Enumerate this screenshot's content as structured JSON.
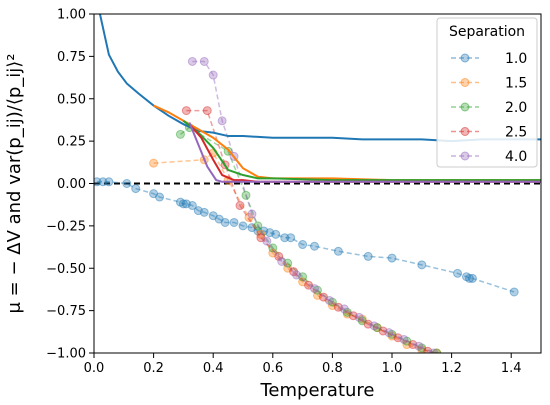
{
  "chart_data": {
    "type": "line",
    "xlabel": "Temperature",
    "ylabel": "μ = − ΔV and var(p_ij)/⟨p_ij⟩²",
    "xlim": [
      0.0,
      1.5
    ],
    "ylim": [
      -1.0,
      1.0
    ],
    "xticks": [
      "0.0",
      "0.2",
      "0.4",
      "0.6",
      "0.8",
      "1.0",
      "1.2",
      "1.4"
    ],
    "yticks": [
      "1.00",
      "0.75",
      "0.50",
      "0.25",
      "0.00",
      "−0.25",
      "−0.50",
      "−0.75",
      "−1.00"
    ],
    "grid": false,
    "legend": {
      "title": "Separation",
      "placement": "top-right"
    },
    "reference_line": {
      "y": 0.0,
      "style": "dashed",
      "color": "#000000"
    },
    "series": [
      {
        "name": "1.0",
        "color": "#1f77b4",
        "style": "dashed-markers",
        "x": [
          0.01,
          0.03,
          0.05,
          0.11,
          0.14,
          0.2,
          0.22,
          0.29,
          0.3,
          0.31,
          0.33,
          0.35,
          0.37,
          0.4,
          0.42,
          0.44,
          0.47,
          0.5,
          0.53,
          0.55,
          0.57,
          0.59,
          0.61,
          0.64,
          0.66,
          0.7,
          0.74,
          0.82,
          0.92,
          1.0,
          1.1,
          1.22,
          1.25,
          1.26,
          1.27,
          1.41
        ],
        "y": [
          0.01,
          0.01,
          0.01,
          -0.0,
          -0.03,
          -0.06,
          -0.08,
          -0.11,
          -0.12,
          -0.12,
          -0.13,
          -0.16,
          -0.17,
          -0.19,
          -0.21,
          -0.23,
          -0.23,
          -0.25,
          -0.26,
          -0.28,
          -0.28,
          -0.29,
          -0.3,
          -0.32,
          -0.32,
          -0.36,
          -0.37,
          -0.4,
          -0.43,
          -0.44,
          -0.48,
          -0.53,
          -0.55,
          -0.56,
          -0.56,
          -0.64
        ]
      },
      {
        "name": "1.5",
        "color": "#ff7f0e",
        "style": "dashed-markers",
        "x": [
          0.2,
          0.37,
          0.4,
          0.45,
          0.52,
          0.56,
          0.6,
          0.65,
          0.7,
          0.75,
          0.8,
          0.85,
          0.9,
          0.95,
          1.0,
          1.05,
          1.1,
          1.15
        ],
        "y": [
          0.12,
          0.14,
          0.18,
          0.02,
          -0.2,
          -0.3,
          -0.41,
          -0.5,
          -0.58,
          -0.66,
          -0.72,
          -0.77,
          -0.8,
          -0.85,
          -0.9,
          -0.95,
          -0.98,
          -1.0
        ]
      },
      {
        "name": "2.0",
        "color": "#2ca02c",
        "style": "dashed-markers",
        "x": [
          0.29,
          0.32,
          0.45,
          0.51,
          0.55,
          0.6,
          0.65,
          0.7,
          0.75,
          0.8,
          0.85,
          0.9,
          0.95,
          1.0,
          1.05,
          1.1,
          1.15
        ],
        "y": [
          0.29,
          0.33,
          0.19,
          -0.07,
          -0.25,
          -0.38,
          -0.47,
          -0.55,
          -0.63,
          -0.7,
          -0.76,
          -0.81,
          -0.85,
          -0.89,
          -0.93,
          -0.97,
          -1.0
        ]
      },
      {
        "name": "2.5",
        "color": "#d62728",
        "style": "dashed-markers",
        "x": [
          0.31,
          0.38,
          0.44,
          0.49,
          0.56,
          0.62,
          0.67,
          0.72,
          0.77,
          0.82,
          0.87,
          0.92,
          0.97,
          1.02,
          1.07,
          1.12
        ],
        "y": [
          0.43,
          0.43,
          0.11,
          -0.13,
          -0.32,
          -0.43,
          -0.52,
          -0.6,
          -0.67,
          -0.73,
          -0.78,
          -0.83,
          -0.87,
          -0.91,
          -0.95,
          -0.99
        ]
      },
      {
        "name": "4.0",
        "color": "#9467bd",
        "style": "dashed-markers",
        "x": [
          0.33,
          0.37,
          0.4,
          0.43,
          0.47,
          0.53,
          0.58,
          0.63,
          0.68,
          0.74,
          0.79,
          0.84,
          0.89,
          0.94,
          0.99,
          1.04,
          1.09,
          1.14
        ],
        "y": [
          0.72,
          0.72,
          0.64,
          0.37,
          0.16,
          -0.18,
          -0.34,
          -0.46,
          -0.54,
          -0.62,
          -0.69,
          -0.74,
          -0.79,
          -0.84,
          -0.88,
          -0.92,
          -0.96,
          -1.0
        ]
      }
    ],
    "solid_series": [
      {
        "color": "#1f77b4",
        "x": [
          0.02,
          0.05,
          0.08,
          0.11,
          0.15,
          0.2,
          0.25,
          0.3,
          0.35,
          0.4,
          0.45,
          0.5,
          0.6,
          0.7,
          0.8,
          0.9,
          1.0,
          1.1,
          1.2,
          1.3,
          1.4,
          1.5
        ],
        "y": [
          1.0,
          0.76,
          0.66,
          0.59,
          0.53,
          0.46,
          0.4,
          0.35,
          0.31,
          0.3,
          0.28,
          0.28,
          0.27,
          0.27,
          0.27,
          0.26,
          0.26,
          0.26,
          0.25,
          0.26,
          0.26,
          0.26
        ]
      },
      {
        "color": "#ff7f0e",
        "x": [
          0.2,
          0.25,
          0.3,
          0.35,
          0.4,
          0.45,
          0.5,
          0.55,
          0.6,
          0.8,
          1.0,
          1.5
        ],
        "y": [
          0.46,
          0.42,
          0.37,
          0.32,
          0.27,
          0.2,
          0.09,
          0.04,
          0.03,
          0.03,
          0.02,
          0.02
        ]
      },
      {
        "color": "#2ca02c",
        "x": [
          0.3,
          0.35,
          0.4,
          0.45,
          0.5,
          0.55,
          0.6,
          0.8,
          1.0,
          1.5
        ],
        "y": [
          0.37,
          0.3,
          0.21,
          0.08,
          0.05,
          0.03,
          0.03,
          0.02,
          0.02,
          0.02
        ]
      },
      {
        "color": "#d62728",
        "x": [
          0.32,
          0.36,
          0.4,
          0.43,
          0.47,
          0.5,
          0.55,
          0.6,
          0.8,
          1.0,
          1.5
        ],
        "y": [
          0.35,
          0.27,
          0.14,
          0.05,
          0.02,
          0.02,
          0.01,
          0.01,
          0.01,
          0.01,
          0.01
        ]
      },
      {
        "color": "#9467bd",
        "x": [
          0.32,
          0.35,
          0.38,
          0.41,
          0.43,
          0.46,
          0.5,
          0.6,
          0.8,
          1.0,
          1.5
        ],
        "y": [
          0.36,
          0.23,
          0.1,
          0.02,
          0.01,
          0.01,
          0.01,
          0.01,
          0.01,
          0.01,
          0.01
        ]
      }
    ]
  }
}
